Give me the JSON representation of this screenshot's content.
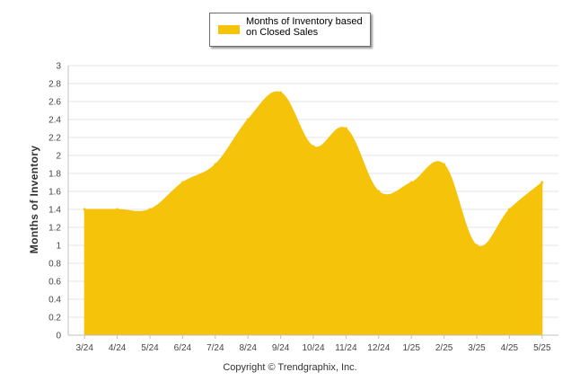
{
  "chart_data": {
    "type": "area",
    "categories": [
      "3/24",
      "4/24",
      "5/24",
      "6/24",
      "7/24",
      "8/24",
      "9/24",
      "10/24",
      "11/24",
      "12/24",
      "1/25",
      "2/25",
      "3/25",
      "4/25",
      "5/25"
    ],
    "series": [
      {
        "name": "Months of Inventory based on Closed Sales",
        "values": [
          1.4,
          1.4,
          1.4,
          1.7,
          1.9,
          2.4,
          2.7,
          2.1,
          2.3,
          1.6,
          1.7,
          1.9,
          1.0,
          1.4,
          1.7
        ],
        "color": "#f5c30a"
      }
    ],
    "ylabel": "Months of Inventory",
    "xlabel": "",
    "ylim": [
      0,
      3
    ],
    "yticks": [
      0,
      0.2,
      0.4,
      0.6,
      0.8,
      1,
      1.2,
      1.4,
      1.6,
      1.8,
      2,
      2.2,
      2.4,
      2.6,
      2.8,
      3
    ],
    "grid": true,
    "legend_position": "top-center"
  },
  "legend": {
    "label": "Months of Inventory based on Closed Sales"
  },
  "footer": {
    "copyright": "Copyright © Trendgraphix, Inc."
  }
}
